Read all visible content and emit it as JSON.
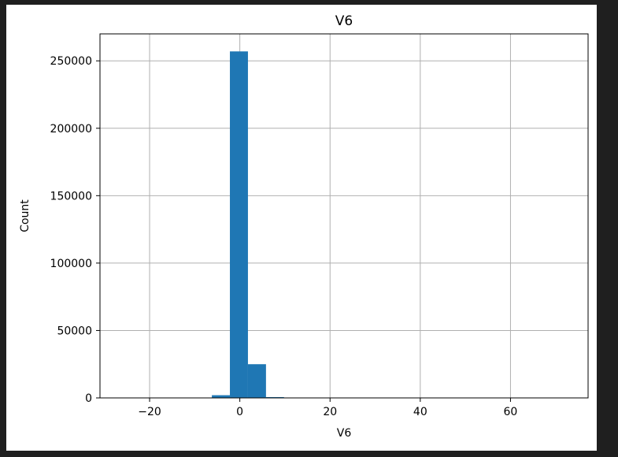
{
  "chart_data": {
    "type": "bar",
    "title": "V6",
    "xlabel": "V6",
    "ylabel": "Count",
    "xlim": [
      -31.0,
      77.2
    ],
    "ylim": [
      0,
      270000
    ],
    "grid": true,
    "x_ticks": [
      -20,
      0,
      20,
      40,
      60
    ],
    "x_tick_labels": [
      "−20",
      "0",
      "20",
      "40",
      "60"
    ],
    "y_ticks": [
      0,
      50000,
      100000,
      150000,
      200000,
      250000
    ],
    "y_tick_labels": [
      "0",
      "50000",
      "100000",
      "150000",
      "200000",
      "250000"
    ],
    "bar_color": "#1f77b4",
    "bins": [
      {
        "x0": -26.2,
        "x1": -22.2,
        "value": 0
      },
      {
        "x0": -22.2,
        "x1": -18.2,
        "value": 0
      },
      {
        "x0": -18.2,
        "x1": -14.2,
        "value": 0
      },
      {
        "x0": -14.2,
        "x1": -10.2,
        "value": 0
      },
      {
        "x0": -10.2,
        "x1": -6.2,
        "value": 150
      },
      {
        "x0": -6.2,
        "x1": -2.2,
        "value": 2000
      },
      {
        "x0": -2.2,
        "x1": 1.8,
        "value": 257000
      },
      {
        "x0": 1.8,
        "x1": 5.8,
        "value": 25000
      },
      {
        "x0": 5.8,
        "x1": 9.8,
        "value": 600
      },
      {
        "x0": 9.8,
        "x1": 13.8,
        "value": 50
      },
      {
        "x0": 13.8,
        "x1": 17.8,
        "value": 10
      },
      {
        "x0": 17.8,
        "x1": 21.8,
        "value": 5
      },
      {
        "x0": 21.8,
        "x1": 25.8,
        "value": 2
      },
      {
        "x0": 25.8,
        "x1": 29.8,
        "value": 1
      },
      {
        "x0": 29.8,
        "x1": 33.8,
        "value": 0
      },
      {
        "x0": 33.8,
        "x1": 37.8,
        "value": 0
      },
      {
        "x0": 37.8,
        "x1": 41.8,
        "value": 0
      },
      {
        "x0": 41.8,
        "x1": 45.8,
        "value": 0
      },
      {
        "x0": 45.8,
        "x1": 49.8,
        "value": 0
      },
      {
        "x0": 49.8,
        "x1": 53.8,
        "value": 0
      },
      {
        "x0": 53.8,
        "x1": 57.8,
        "value": 0
      },
      {
        "x0": 57.8,
        "x1": 61.8,
        "value": 0
      },
      {
        "x0": 61.8,
        "x1": 65.8,
        "value": 0
      },
      {
        "x0": 65.8,
        "x1": 69.8,
        "value": 0
      },
      {
        "x0": 69.8,
        "x1": 73.8,
        "value": 1
      }
    ]
  }
}
